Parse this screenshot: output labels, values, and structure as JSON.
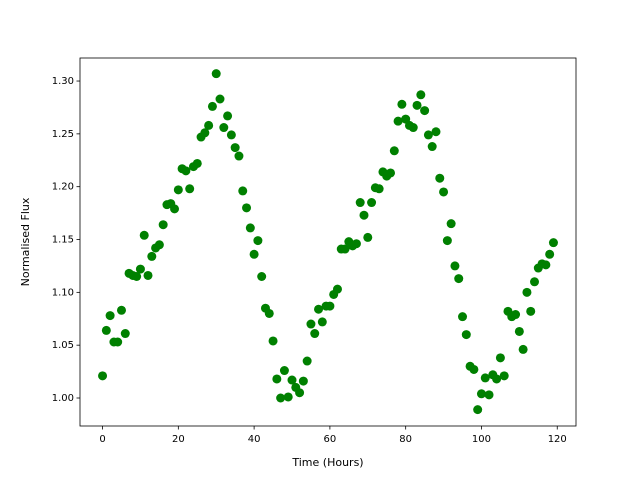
{
  "chart_data": {
    "type": "scatter",
    "x_label": "Time (Hours)",
    "y_label": "Normalised Flux",
    "color": "#008000",
    "x": [
      0,
      1,
      2,
      3,
      4,
      5,
      6,
      7,
      8,
      9,
      10,
      11,
      12,
      13,
      14,
      15,
      16,
      17,
      18,
      19,
      20,
      21,
      22,
      23,
      24,
      25,
      26,
      27,
      28,
      29,
      30,
      31,
      32,
      33,
      34,
      35,
      36,
      37,
      38,
      39,
      40,
      41,
      42,
      43,
      44,
      45,
      46,
      47,
      48,
      49,
      50,
      51,
      52,
      53,
      54,
      55,
      56,
      57,
      58,
      59,
      60,
      61,
      62,
      63,
      64,
      65,
      66,
      67,
      68,
      69,
      70,
      71,
      72,
      73,
      74,
      75,
      76,
      77,
      78,
      79,
      80,
      81,
      82,
      83,
      84,
      85,
      86,
      87,
      88,
      89,
      90,
      91,
      92,
      93,
      94,
      95,
      96,
      97,
      98,
      99,
      100,
      101,
      102,
      103,
      104,
      105,
      106,
      107,
      108,
      109,
      110,
      111,
      112,
      113,
      114,
      115,
      116,
      117,
      118,
      119
    ],
    "values": [
      1.021,
      1.064,
      1.078,
      1.053,
      1.053,
      1.083,
      1.061,
      1.118,
      1.116,
      1.115,
      1.122,
      1.154,
      1.116,
      1.134,
      1.142,
      1.145,
      1.164,
      1.183,
      1.184,
      1.179,
      1.197,
      1.217,
      1.215,
      1.198,
      1.219,
      1.222,
      1.247,
      1.251,
      1.258,
      1.276,
      1.307,
      1.283,
      1.256,
      1.267,
      1.249,
      1.237,
      1.229,
      1.196,
      1.18,
      1.161,
      1.136,
      1.149,
      1.115,
      1.085,
      1.08,
      1.054,
      1.018,
      1.0,
      1.026,
      1.001,
      1.017,
      1.01,
      1.005,
      1.016,
      1.035,
      1.07,
      1.061,
      1.084,
      1.072,
      1.087,
      1.087,
      1.098,
      1.103,
      1.141,
      1.141,
      1.148,
      1.144,
      1.146,
      1.185,
      1.173,
      1.152,
      1.185,
      1.199,
      1.198,
      1.214,
      1.21,
      1.213,
      1.234,
      1.262,
      1.278,
      1.264,
      1.258,
      1.256,
      1.277,
      1.287,
      1.272,
      1.249,
      1.238,
      1.252,
      1.208,
      1.195,
      1.149,
      1.165,
      1.125,
      1.113,
      1.077,
      1.06,
      1.03,
      1.027,
      0.989,
      1.004,
      1.019,
      1.003,
      1.022,
      1.018,
      1.038,
      1.021,
      1.082,
      1.077,
      1.079,
      1.063,
      1.046,
      1.1,
      1.082,
      1.11,
      1.123,
      1.127,
      1.126,
      1.136,
      1.147
    ],
    "xlim": [
      -5.95,
      124.95
    ],
    "ylim": [
      0.9735,
      1.3218
    ],
    "xticks": [
      0,
      20,
      40,
      60,
      80,
      100,
      120
    ],
    "yticks": [
      {
        "value": 1,
        "label": "1.00"
      },
      1.05,
      {
        "value": 1.1,
        "label": "1.10"
      },
      1.15,
      {
        "value": 1.2,
        "label": "1.20"
      },
      1.25,
      {
        "value": 1.3,
        "label": "1.30"
      }
    ]
  }
}
